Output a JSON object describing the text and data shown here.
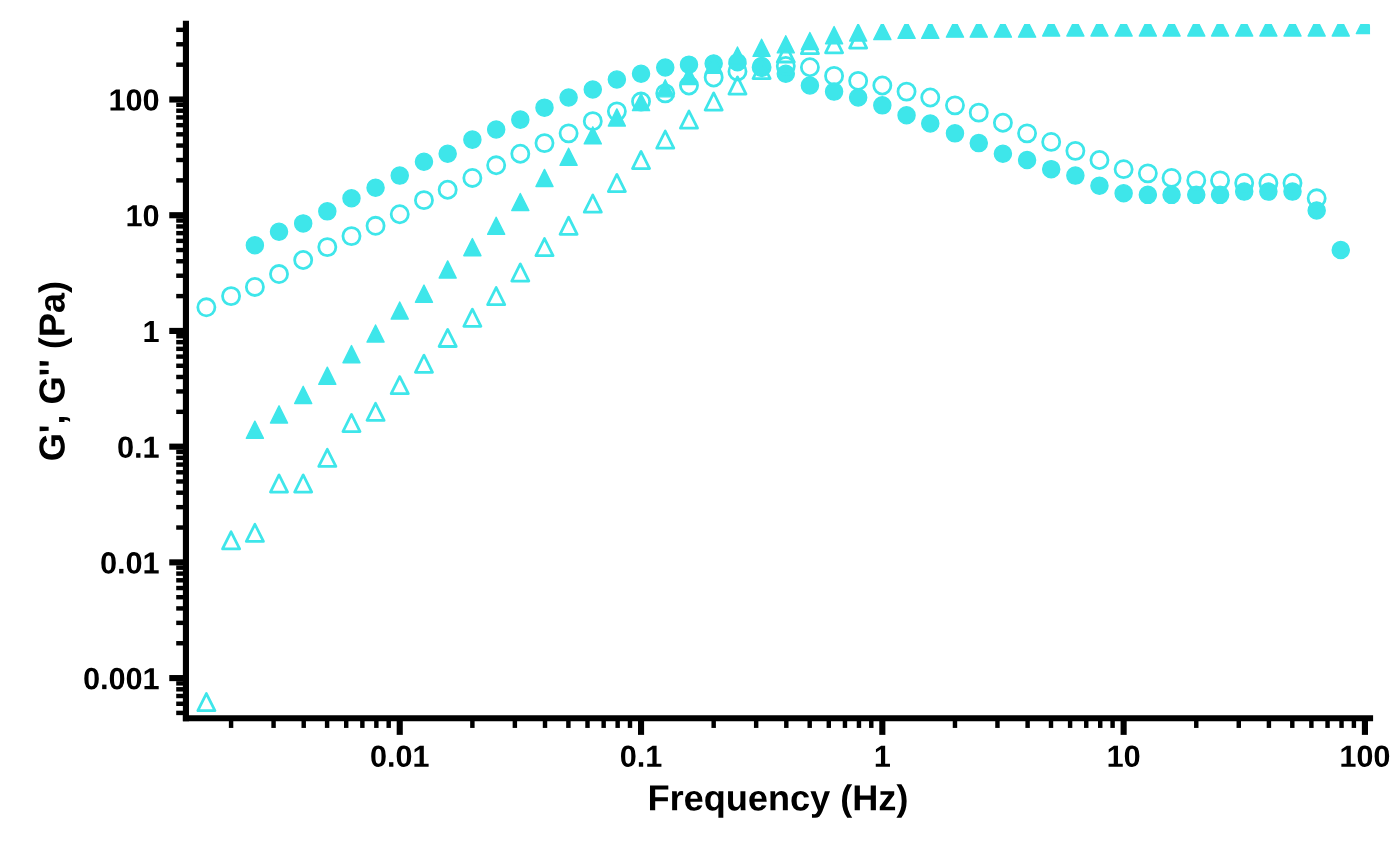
{
  "chart_data": {
    "type": "scatter",
    "xlabel": "Frequency (Hz)",
    "ylabel": "G', G'' (Pa)",
    "log": "xy",
    "xlim": [
      0.0013,
      105
    ],
    "ylim": [
      0.00045,
      450
    ],
    "xticks": [
      0.01,
      0.1,
      1,
      10,
      100
    ],
    "yticks": [
      0.001,
      0.01,
      0.1,
      1,
      10,
      100
    ],
    "grid": false,
    "series": [
      {
        "color": "#3ee6ea",
        "marker": "circle",
        "x": [
          0.00251,
          0.00316,
          0.00398,
          0.00501,
          0.00631,
          0.00794,
          0.01,
          0.0126,
          0.0158,
          0.02,
          0.0251,
          0.0316,
          0.0398,
          0.0501,
          0.0631,
          0.0794,
          0.1,
          0.126,
          0.158,
          0.2,
          0.251,
          0.316,
          0.398,
          0.501,
          0.631,
          0.794,
          1,
          1.26,
          1.58,
          2,
          2.51,
          3.16,
          3.98,
          5.01,
          6.31,
          7.94,
          10,
          12.6,
          15.8,
          20,
          25.1,
          31.6,
          39.8,
          50.1,
          63.1,
          79.4
        ],
        "values": [
          5.5,
          7.2,
          8.5,
          10.8,
          14,
          17.3,
          22,
          29,
          34,
          45,
          55,
          67,
          85,
          104,
          122,
          149,
          167,
          189,
          200,
          205,
          210,
          195,
          167,
          132,
          117,
          104,
          89,
          73,
          62,
          51,
          42,
          34,
          30,
          25,
          22,
          18,
          15.5,
          15,
          15,
          15,
          15,
          16,
          16,
          16,
          11,
          5
        ]
      },
      {
        "color": "#3ee6ea",
        "marker": "circle",
        "x": [
          0.00158,
          0.002,
          0.00251,
          0.00316,
          0.00398,
          0.00501,
          0.00631,
          0.00794,
          0.01,
          0.0126,
          0.0158,
          0.02,
          0.0251,
          0.0316,
          0.0398,
          0.0501,
          0.0631,
          0.0794,
          0.1,
          0.126,
          0.158,
          0.2,
          0.251,
          0.316,
          0.398,
          0.501,
          0.631,
          0.794,
          1,
          1.26,
          1.58,
          2,
          2.51,
          3.16,
          3.98,
          5.01,
          6.31,
          7.94,
          10,
          12.6,
          15.8,
          20,
          25.1,
          31.6,
          39.8,
          50.1,
          63.1
        ],
        "values": [
          1.6,
          2.0,
          2.4,
          3.1,
          4.1,
          5.3,
          6.6,
          8.1,
          10.2,
          13.5,
          16.6,
          21,
          27,
          34,
          42,
          51,
          65,
          79,
          96,
          113,
          132,
          155,
          175,
          190,
          195,
          190,
          160,
          145,
          132,
          117,
          104,
          89,
          77,
          63,
          51,
          43,
          36,
          30,
          25,
          23,
          21,
          20,
          20,
          19,
          19,
          19,
          14
        ]
      },
      {
        "color": "#3ee6ea",
        "marker": "triangle",
        "x": [
          0.00251,
          0.00316,
          0.00398,
          0.00501,
          0.00631,
          0.00794,
          0.01,
          0.0126,
          0.0158,
          0.02,
          0.0251,
          0.0316,
          0.0398,
          0.0501,
          0.0631,
          0.0794,
          0.1,
          0.126,
          0.158,
          0.2,
          0.251,
          0.316,
          0.398,
          0.501,
          0.631,
          0.794,
          1,
          1.26,
          1.58,
          2,
          2.51,
          3.16,
          3.98,
          5.01,
          6.31,
          7.94,
          10,
          12.6,
          15.8,
          20,
          25.1,
          31.6,
          39.8,
          50.1,
          63.1,
          79.4,
          100
        ],
        "values": [
          0.14,
          0.19,
          0.28,
          0.41,
          0.63,
          0.95,
          1.5,
          2.1,
          3.4,
          5.3,
          8.1,
          13,
          21,
          32,
          49,
          70,
          95,
          125,
          160,
          200,
          240,
          280,
          300,
          320,
          360,
          380,
          390,
          400,
          400,
          410,
          410,
          410,
          410,
          420,
          420,
          420,
          420,
          420,
          420,
          420,
          420,
          420,
          420,
          420,
          420,
          420,
          440
        ]
      },
      {
        "color": "#3ee6ea",
        "marker": "triangle",
        "x": [
          0.00158,
          0.002,
          0.00251,
          0.00316,
          0.00398,
          0.00501,
          0.00631,
          0.00794,
          0.01,
          0.0126,
          0.0158,
          0.02,
          0.0251,
          0.0316,
          0.0398,
          0.0501,
          0.0631,
          0.0794,
          0.1,
          0.126,
          0.158,
          0.2,
          0.251,
          0.316,
          0.398,
          0.501,
          0.631,
          0.794
        ],
        "values": [
          0.00062,
          0.0155,
          0.018,
          0.048,
          0.048,
          0.08,
          0.16,
          0.2,
          0.34,
          0.52,
          0.87,
          1.3,
          2.0,
          3.2,
          5.3,
          8.1,
          12.6,
          19,
          30,
          45,
          67,
          96,
          132,
          180,
          250,
          295,
          300,
          330
        ]
      }
    ]
  }
}
